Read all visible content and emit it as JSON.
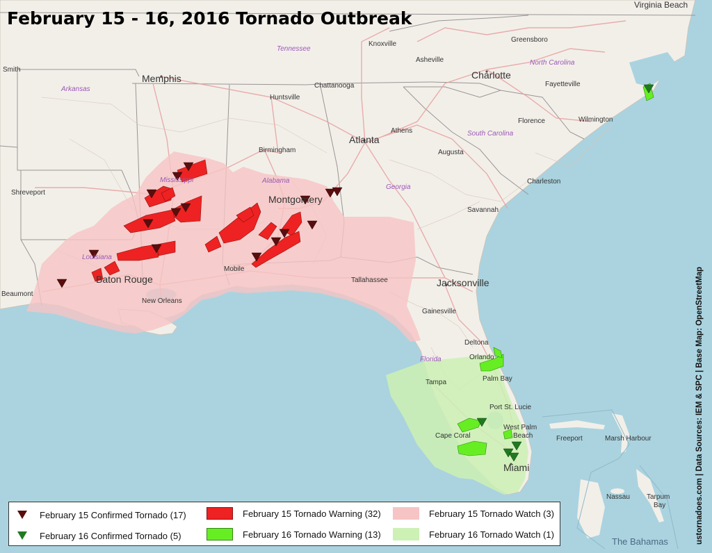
{
  "title": "February 15 - 16, 2016 Tornado Outbreak",
  "credit": "ustornadoes.com | Data Sources: IEM & SPC | Base Map: OpenStreetMap",
  "colors": {
    "water": "#aad3df",
    "land": "#f2efe9",
    "feb15_tornado": "#5a0d0d",
    "feb16_tornado": "#1f7a1f",
    "feb15_warning": "#ee2222",
    "feb16_warning": "#66ee22",
    "feb15_watch": "#f6c4c4",
    "feb16_watch": "#cdf0b4"
  },
  "legend": {
    "feb15_tornado": "February 15 Confirmed Tornado (17)",
    "feb16_tornado": "February 16 Confirmed Tornado (5)",
    "feb15_warning": "February 15 Tornado Warning (32)",
    "feb16_warning": "February 16 Tornado Warning (13)",
    "feb15_watch": "February 15 Tornado Watch (3)",
    "feb16_watch": "February 16 Tornado Watch (1)"
  },
  "cities": {
    "virginia_beach": "Virginia Beach",
    "smith": "Smith",
    "memphis": "Memphis",
    "knoxville": "Knoxville",
    "greensboro": "Greensboro",
    "asheville": "Asheville",
    "charlotte": "Charlotte",
    "fayetteville": "Fayetteville",
    "huntsville": "Huntsville",
    "chattanooga": "Chattanooga",
    "athens": "Athens",
    "florence": "Florence",
    "wilmington": "Wilmington",
    "birmingham": "Birmingham",
    "atlanta": "Atlanta",
    "augusta": "Augusta",
    "charleston": "Charleston",
    "shreveport": "Shreveport",
    "montgomery": "Montgomery",
    "savannah": "Savannah",
    "mobile": "Mobile",
    "baton_rouge": "Baton Rouge",
    "beaumont": "Beaumont",
    "new_orleans": "New Orleans",
    "tallahassee": "Tallahassee",
    "jacksonville": "Jacksonville",
    "gainesville": "Gainesville",
    "deltona": "Deltona",
    "orlando": "Orlando",
    "tampa": "Tampa",
    "palm_bay": "Palm Bay",
    "port_st_lucie": "Port St. Lucie",
    "west_palm": "West Palm",
    "beach": "Beach",
    "cape_coral": "Cape Coral",
    "miami": "Miami",
    "freeport": "Freeport",
    "marsh_harbour": "Marsh Harbour",
    "nassau": "Nassau",
    "tarpum": "Tarpum",
    "bay": "Bay"
  },
  "states": {
    "tennessee": "Tennessee",
    "north_carolina": "North Carolina",
    "arkansas": "Arkansas",
    "south_carolina": "South Carolina",
    "mississippi": "Mississippi",
    "alabama": "Alabama",
    "georgia": "Georgia",
    "louisiana": "Louisiana",
    "florida": "Florida"
  },
  "water": {
    "bahamas": "The Bahamas"
  }
}
